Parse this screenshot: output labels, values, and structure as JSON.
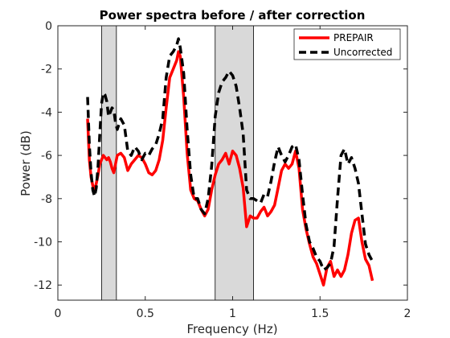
{
  "chart_data": {
    "type": "line",
    "title": "Power spectra before / after correction",
    "xlabel": "Frequency (Hz)",
    "ylabel": "Power (dB)",
    "xlim": [
      0,
      2
    ],
    "ylim": [
      -12.7,
      0
    ],
    "xticks": [
      0,
      0.5,
      1,
      1.5,
      2
    ],
    "xtick_labels": [
      "0",
      "0.5",
      "1",
      "1.5",
      "2"
    ],
    "yticks": [
      0,
      -2,
      -4,
      -6,
      -8,
      -10,
      -12
    ],
    "ytick_labels": [
      "0",
      "-2",
      "-4",
      "-6",
      "-8",
      "-10",
      "-12"
    ],
    "grid": false,
    "legend_position": "top-right",
    "shaded_bands": [
      {
        "x0": 0.25,
        "x1": 0.335,
        "color": "#d9d9d9"
      },
      {
        "x0": 0.9,
        "x1": 1.12,
        "color": "#d9d9d9"
      }
    ],
    "series": [
      {
        "name": "PREPAIR",
        "color": "#ff0000",
        "style": "solid",
        "x": [
          0.17,
          0.18,
          0.19,
          0.2,
          0.21,
          0.22,
          0.23,
          0.24,
          0.25,
          0.26,
          0.27,
          0.28,
          0.29,
          0.3,
          0.31,
          0.32,
          0.33,
          0.34,
          0.36,
          0.38,
          0.4,
          0.42,
          0.44,
          0.46,
          0.48,
          0.5,
          0.52,
          0.54,
          0.56,
          0.58,
          0.6,
          0.62,
          0.64,
          0.66,
          0.68,
          0.69,
          0.7,
          0.72,
          0.74,
          0.76,
          0.78,
          0.8,
          0.82,
          0.84,
          0.86,
          0.88,
          0.9,
          0.92,
          0.94,
          0.96,
          0.98,
          1.0,
          1.02,
          1.04,
          1.06,
          1.08,
          1.1,
          1.12,
          1.14,
          1.16,
          1.18,
          1.2,
          1.22,
          1.24,
          1.26,
          1.28,
          1.3,
          1.32,
          1.34,
          1.36,
          1.38,
          1.4,
          1.42,
          1.44,
          1.46,
          1.48,
          1.5,
          1.52,
          1.54,
          1.56,
          1.58,
          1.6,
          1.62,
          1.64,
          1.66,
          1.68,
          1.7,
          1.72,
          1.74,
          1.76,
          1.78,
          1.8
        ],
        "values": [
          -4.3,
          -6.2,
          -7.0,
          -7.4,
          -7.6,
          -7.3,
          -6.9,
          -6.4,
          -6.2,
          -6.0,
          -6.1,
          -6.2,
          -6.1,
          -6.3,
          -6.6,
          -6.8,
          -6.4,
          -6.0,
          -5.9,
          -6.1,
          -6.7,
          -6.4,
          -6.2,
          -6.0,
          -6.1,
          -6.4,
          -6.8,
          -6.9,
          -6.7,
          -6.2,
          -5.3,
          -3.8,
          -2.4,
          -2.0,
          -1.6,
          -1.2,
          -1.4,
          -3.3,
          -5.9,
          -7.6,
          -8.0,
          -8.1,
          -8.5,
          -8.8,
          -8.5,
          -7.6,
          -6.9,
          -6.4,
          -6.2,
          -5.9,
          -6.4,
          -5.8,
          -6.0,
          -6.6,
          -7.5,
          -9.3,
          -8.8,
          -8.9,
          -8.9,
          -8.6,
          -8.4,
          -8.8,
          -8.6,
          -8.3,
          -7.5,
          -6.7,
          -6.4,
          -6.6,
          -6.4,
          -5.8,
          -6.6,
          -8.5,
          -9.4,
          -10.1,
          -10.7,
          -11.0,
          -11.5,
          -12.0,
          -11.2,
          -10.9,
          -11.6,
          -11.3,
          -11.6,
          -11.3,
          -10.6,
          -9.6,
          -9.0,
          -8.9,
          -10.0,
          -10.8,
          -11.1,
          -11.8
        ]
      },
      {
        "name": "Uncorrected",
        "color": "#000000",
        "style": "dashed",
        "x": [
          0.17,
          0.18,
          0.19,
          0.2,
          0.21,
          0.22,
          0.23,
          0.24,
          0.25,
          0.26,
          0.27,
          0.28,
          0.29,
          0.3,
          0.31,
          0.32,
          0.33,
          0.34,
          0.36,
          0.38,
          0.4,
          0.42,
          0.44,
          0.46,
          0.48,
          0.5,
          0.52,
          0.54,
          0.56,
          0.58,
          0.6,
          0.62,
          0.64,
          0.66,
          0.68,
          0.69,
          0.7,
          0.72,
          0.74,
          0.76,
          0.78,
          0.8,
          0.82,
          0.84,
          0.86,
          0.88,
          0.9,
          0.92,
          0.94,
          0.96,
          0.98,
          1.0,
          1.02,
          1.04,
          1.06,
          1.08,
          1.1,
          1.12,
          1.14,
          1.16,
          1.18,
          1.2,
          1.22,
          1.24,
          1.26,
          1.28,
          1.3,
          1.32,
          1.34,
          1.36,
          1.38,
          1.4,
          1.42,
          1.44,
          1.46,
          1.48,
          1.5,
          1.52,
          1.54,
          1.56,
          1.58,
          1.6,
          1.62,
          1.64,
          1.66,
          1.68,
          1.7,
          1.72,
          1.74,
          1.76,
          1.78,
          1.8
        ],
        "values": [
          -3.3,
          -5.5,
          -6.8,
          -7.6,
          -7.9,
          -7.5,
          -6.5,
          -5.0,
          -3.6,
          -3.1,
          -3.2,
          -3.5,
          -4.2,
          -4.0,
          -3.8,
          -3.9,
          -4.5,
          -4.8,
          -4.3,
          -4.6,
          -5.8,
          -6.0,
          -5.6,
          -5.8,
          -6.2,
          -5.9,
          -6.0,
          -5.7,
          -5.5,
          -5.0,
          -4.3,
          -2.4,
          -1.4,
          -1.2,
          -0.9,
          -0.6,
          -1.0,
          -2.2,
          -4.8,
          -6.9,
          -8.0,
          -8.0,
          -8.5,
          -8.7,
          -8.0,
          -6.5,
          -4.2,
          -3.1,
          -2.6,
          -2.4,
          -2.1,
          -2.3,
          -2.8,
          -3.8,
          -5.0,
          -7.6,
          -8.0,
          -8.0,
          -8.1,
          -8.2,
          -7.8,
          -7.9,
          -7.2,
          -6.3,
          -5.6,
          -6.0,
          -6.3,
          -6.0,
          -5.6,
          -5.5,
          -6.2,
          -7.8,
          -9.2,
          -10.0,
          -10.3,
          -10.7,
          -10.9,
          -11.3,
          -11.2,
          -11.0,
          -10.2,
          -8.0,
          -6.0,
          -5.7,
          -6.4,
          -6.1,
          -6.6,
          -7.3,
          -8.7,
          -10.1,
          -10.6,
          -10.9
        ]
      }
    ]
  }
}
